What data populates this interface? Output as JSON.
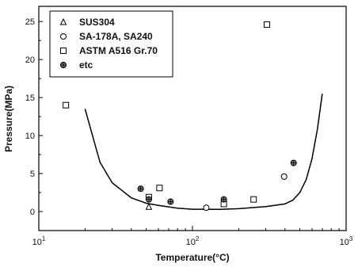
{
  "chart_data": {
    "type": "scatter",
    "xlabel": "Temperature(°C)",
    "ylabel": "Pressure(MPa)",
    "xscale": "log",
    "xlim": [
      10,
      1000
    ],
    "ylim": [
      -2.5,
      27
    ],
    "x_ticks": [
      {
        "value": 10,
        "base": "10",
        "exp": "1"
      },
      {
        "value": 100,
        "base": "10",
        "exp": "2"
      },
      {
        "value": 1000,
        "base": "10",
        "exp": "3"
      }
    ],
    "y_ticks": [
      0,
      5,
      10,
      15,
      20,
      25
    ],
    "grid": false,
    "legend_position": "top-left",
    "series": [
      {
        "name": "SUS304",
        "marker": "triangle",
        "points": [
          [
            52,
            0.6
          ]
        ]
      },
      {
        "name": "SA-178A, SA240",
        "marker": "circle",
        "points": [
          [
            123,
            0.5
          ],
          [
            395,
            4.6
          ]
        ]
      },
      {
        "name": "ASTM A516 Gr.70",
        "marker": "square",
        "points": [
          [
            15,
            14
          ],
          [
            52,
            1.9
          ],
          [
            61,
            3.1
          ],
          [
            160,
            1.0
          ],
          [
            250,
            1.6
          ],
          [
            305,
            24.6
          ]
        ]
      },
      {
        "name": "etc",
        "marker": "asterisk",
        "points": [
          [
            46,
            3.0
          ],
          [
            52,
            1.6
          ],
          [
            72,
            1.3
          ],
          [
            160,
            1.6
          ],
          [
            455,
            6.4
          ]
        ]
      }
    ],
    "curve": {
      "style": "solid",
      "points": [
        [
          20,
          13.5
        ],
        [
          25,
          6.5
        ],
        [
          30,
          3.8
        ],
        [
          40,
          1.8
        ],
        [
          50,
          1.1
        ],
        [
          60,
          0.8
        ],
        [
          80,
          0.45
        ],
        [
          100,
          0.3
        ],
        [
          150,
          0.28
        ],
        [
          200,
          0.38
        ],
        [
          300,
          0.65
        ],
        [
          400,
          1.0
        ],
        [
          450,
          1.5
        ],
        [
          500,
          2.5
        ],
        [
          550,
          4.2
        ],
        [
          600,
          7.0
        ],
        [
          650,
          10.8
        ],
        [
          700,
          15.5
        ]
      ]
    }
  }
}
